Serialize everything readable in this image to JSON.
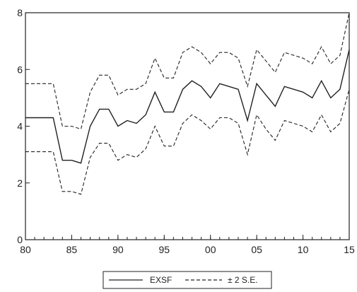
{
  "chart_data": {
    "type": "line",
    "x": [
      1980,
      1981,
      1982,
      1983,
      1984,
      1985,
      1986,
      1987,
      1988,
      1989,
      1990,
      1991,
      1992,
      1993,
      1994,
      1995,
      1996,
      1997,
      1998,
      1999,
      2000,
      2001,
      2002,
      2003,
      2004,
      2005,
      2006,
      2007,
      2008,
      2009,
      2010,
      2011,
      2012,
      2013,
      2014,
      2015
    ],
    "x_ticks": [
      1980,
      1985,
      1990,
      1995,
      2000,
      2005,
      2010,
      2015
    ],
    "x_tick_labels": [
      "80",
      "85",
      "90",
      "95",
      "00",
      "05",
      "10",
      "15"
    ],
    "y_ticks": [
      0,
      2,
      4,
      6,
      8
    ],
    "y_tick_labels": [
      "0",
      "2",
      "4",
      "6",
      "8"
    ],
    "xlim": [
      1980,
      2015
    ],
    "ylim": [
      0,
      8
    ],
    "series": [
      {
        "name": "EXSF",
        "style": "solid",
        "values": [
          4.3,
          4.3,
          4.3,
          4.3,
          2.8,
          2.8,
          2.7,
          4.0,
          4.6,
          4.6,
          4.0,
          4.2,
          4.1,
          4.4,
          5.2,
          4.5,
          4.5,
          5.3,
          5.6,
          5.4,
          5.0,
          5.5,
          5.4,
          5.3,
          4.2,
          5.5,
          5.1,
          4.7,
          5.4,
          5.3,
          5.2,
          5.0,
          5.6,
          5.0,
          5.3,
          6.7
        ]
      },
      {
        "name": "± 2 S.E.",
        "style": "dashed",
        "values_upper": [
          5.5,
          5.5,
          5.5,
          5.5,
          4.0,
          4.0,
          3.9,
          5.2,
          5.8,
          5.8,
          5.1,
          5.3,
          5.3,
          5.5,
          6.4,
          5.7,
          5.7,
          6.6,
          6.8,
          6.6,
          6.2,
          6.6,
          6.6,
          6.4,
          5.4,
          6.7,
          6.3,
          5.9,
          6.6,
          6.5,
          6.4,
          6.2,
          6.8,
          6.2,
          6.5,
          8.0
        ],
        "values_lower": [
          3.1,
          3.1,
          3.1,
          3.1,
          1.7,
          1.7,
          1.6,
          2.9,
          3.4,
          3.4,
          2.8,
          3.0,
          2.9,
          3.2,
          4.0,
          3.3,
          3.3,
          4.1,
          4.4,
          4.2,
          3.9,
          4.3,
          4.3,
          4.1,
          3.0,
          4.4,
          3.9,
          3.5,
          4.2,
          4.1,
          4.0,
          3.8,
          4.4,
          3.8,
          4.1,
          5.3
        ]
      }
    ],
    "grid": false,
    "legend_position": "bottom-center",
    "title": "",
    "xlabel": "",
    "ylabel": ""
  }
}
